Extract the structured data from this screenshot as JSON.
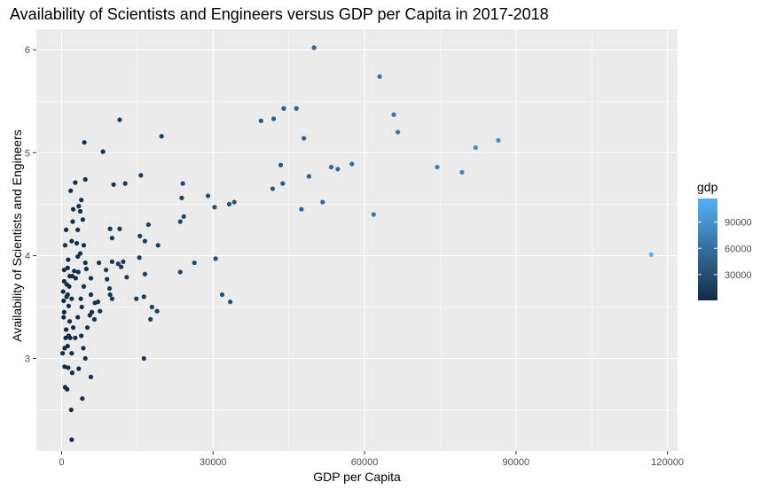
{
  "chart_data": {
    "type": "scatter",
    "title": "Availability of Scientists and Engineers versus GDP per Capita in 2017-2018",
    "xlabel": "GDP per Capita",
    "ylabel": "Availability of Scientists and Engineers",
    "xlim": [
      -5000,
      122000
    ],
    "ylim": [
      2.1,
      6.2
    ],
    "x_ticks": [
      0,
      30000,
      60000,
      90000,
      120000
    ],
    "x_tick_labels": [
      "0",
      "30000",
      "60000",
      "90000",
      "120000"
    ],
    "y_ticks": [
      3,
      4,
      5,
      6
    ],
    "y_tick_labels": [
      "3",
      "4",
      "5",
      "6"
    ],
    "grid": true,
    "background": "#ebebeb",
    "legend": {
      "title": "gdp",
      "placement": "right",
      "type": "colorbar",
      "range": [
        500,
        117000
      ],
      "ticks": [
        30000,
        60000,
        90000
      ],
      "tick_labels": [
        "30000",
        "60000",
        "90000"
      ],
      "color_low": "#132b43",
      "color_high": "#56b1f7"
    },
    "points": [
      [
        50000,
        6.02
      ],
      [
        63000,
        5.74
      ],
      [
        11500,
        5.32
      ],
      [
        39500,
        5.31
      ],
      [
        42000,
        5.33
      ],
      [
        44000,
        5.43
      ],
      [
        46500,
        5.43
      ],
      [
        65800,
        5.37
      ],
      [
        66600,
        5.2
      ],
      [
        4500,
        5.1
      ],
      [
        19800,
        5.16
      ],
      [
        48000,
        5.14
      ],
      [
        8200,
        5.01
      ],
      [
        86500,
        5.12
      ],
      [
        82000,
        5.05
      ],
      [
        74400,
        4.86
      ],
      [
        79300,
        4.81
      ],
      [
        53400,
        4.86
      ],
      [
        54700,
        4.84
      ],
      [
        57500,
        4.89
      ],
      [
        43400,
        4.88
      ],
      [
        15700,
        4.78
      ],
      [
        49000,
        4.77
      ],
      [
        2700,
        4.71
      ],
      [
        4700,
        4.74
      ],
      [
        10300,
        4.69
      ],
      [
        12600,
        4.7
      ],
      [
        24000,
        4.7
      ],
      [
        41800,
        4.65
      ],
      [
        43800,
        4.7
      ],
      [
        1800,
        4.63
      ],
      [
        3900,
        4.54
      ],
      [
        23800,
        4.56
      ],
      [
        29000,
        4.58
      ],
      [
        30300,
        4.47
      ],
      [
        33200,
        4.5
      ],
      [
        34200,
        4.52
      ],
      [
        51700,
        4.52
      ],
      [
        47500,
        4.45
      ],
      [
        61800,
        4.4
      ],
      [
        2300,
        4.45
      ],
      [
        3400,
        4.48
      ],
      [
        3700,
        4.43
      ],
      [
        4200,
        4.35
      ],
      [
        2200,
        4.33
      ],
      [
        24200,
        4.38
      ],
      [
        23500,
        4.33
      ],
      [
        900,
        4.25
      ],
      [
        3200,
        4.25
      ],
      [
        9600,
        4.26
      ],
      [
        11500,
        4.26
      ],
      [
        17200,
        4.3
      ],
      [
        15500,
        4.19
      ],
      [
        3000,
        4.12
      ],
      [
        2000,
        4.14
      ],
      [
        4400,
        4.1
      ],
      [
        10000,
        4.17
      ],
      [
        700,
        4.1
      ],
      [
        16500,
        4.14
      ],
      [
        19100,
        4.1
      ],
      [
        3700,
        4.02
      ],
      [
        3200,
        3.99
      ],
      [
        1300,
        3.96
      ],
      [
        7400,
        3.93
      ],
      [
        10000,
        3.94
      ],
      [
        11200,
        3.92
      ],
      [
        12200,
        3.94
      ],
      [
        15400,
        3.98
      ],
      [
        26300,
        3.93
      ],
      [
        30500,
        3.97
      ],
      [
        116800,
        4.01
      ],
      [
        4700,
        3.93
      ],
      [
        500,
        3.86
      ],
      [
        1200,
        3.88
      ],
      [
        2500,
        3.85
      ],
      [
        3300,
        3.84
      ],
      [
        4900,
        3.87
      ],
      [
        8800,
        3.86
      ],
      [
        11800,
        3.89
      ],
      [
        23500,
        3.84
      ],
      [
        1600,
        3.8
      ],
      [
        2100,
        3.8
      ],
      [
        2800,
        3.78
      ],
      [
        5800,
        3.78
      ],
      [
        9000,
        3.77
      ],
      [
        12900,
        3.79
      ],
      [
        16500,
        3.82
      ],
      [
        500,
        3.75
      ],
      [
        1000,
        3.72
      ],
      [
        1500,
        3.7
      ],
      [
        4400,
        3.7
      ],
      [
        9500,
        3.68
      ],
      [
        300,
        3.65
      ],
      [
        1200,
        3.62
      ],
      [
        5800,
        3.62
      ],
      [
        9600,
        3.62
      ],
      [
        16300,
        3.6
      ],
      [
        31800,
        3.62
      ],
      [
        1000,
        3.6
      ],
      [
        2000,
        3.58
      ],
      [
        3800,
        3.58
      ],
      [
        7200,
        3.55
      ],
      [
        10000,
        3.58
      ],
      [
        14800,
        3.58
      ],
      [
        400,
        3.56
      ],
      [
        6600,
        3.54
      ],
      [
        17900,
        3.5
      ],
      [
        33400,
        3.55
      ],
      [
        1400,
        3.51
      ],
      [
        4000,
        3.5
      ],
      [
        6000,
        3.45
      ],
      [
        7600,
        3.46
      ],
      [
        18900,
        3.46
      ],
      [
        500,
        3.45
      ],
      [
        5600,
        3.42
      ],
      [
        400,
        3.4
      ],
      [
        3200,
        3.4
      ],
      [
        6500,
        3.38
      ],
      [
        17600,
        3.38
      ],
      [
        1600,
        3.36
      ],
      [
        2300,
        3.3
      ],
      [
        900,
        3.28
      ],
      [
        5100,
        3.3
      ],
      [
        800,
        3.2
      ],
      [
        1400,
        3.22
      ],
      [
        1700,
        3.2
      ],
      [
        2700,
        3.2
      ],
      [
        3900,
        3.22
      ],
      [
        1200,
        3.12
      ],
      [
        600,
        3.1
      ],
      [
        4300,
        3.1
      ],
      [
        200,
        3.05
      ],
      [
        2000,
        3.05
      ],
      [
        16300,
        3.0
      ],
      [
        4700,
        3.0
      ],
      [
        600,
        2.92
      ],
      [
        1300,
        2.91
      ],
      [
        3400,
        2.9
      ],
      [
        2100,
        2.86
      ],
      [
        5800,
        2.82
      ],
      [
        700,
        2.72
      ],
      [
        1100,
        2.7
      ],
      [
        4100,
        2.61
      ],
      [
        1900,
        2.5
      ],
      [
        2000,
        2.21
      ]
    ]
  }
}
